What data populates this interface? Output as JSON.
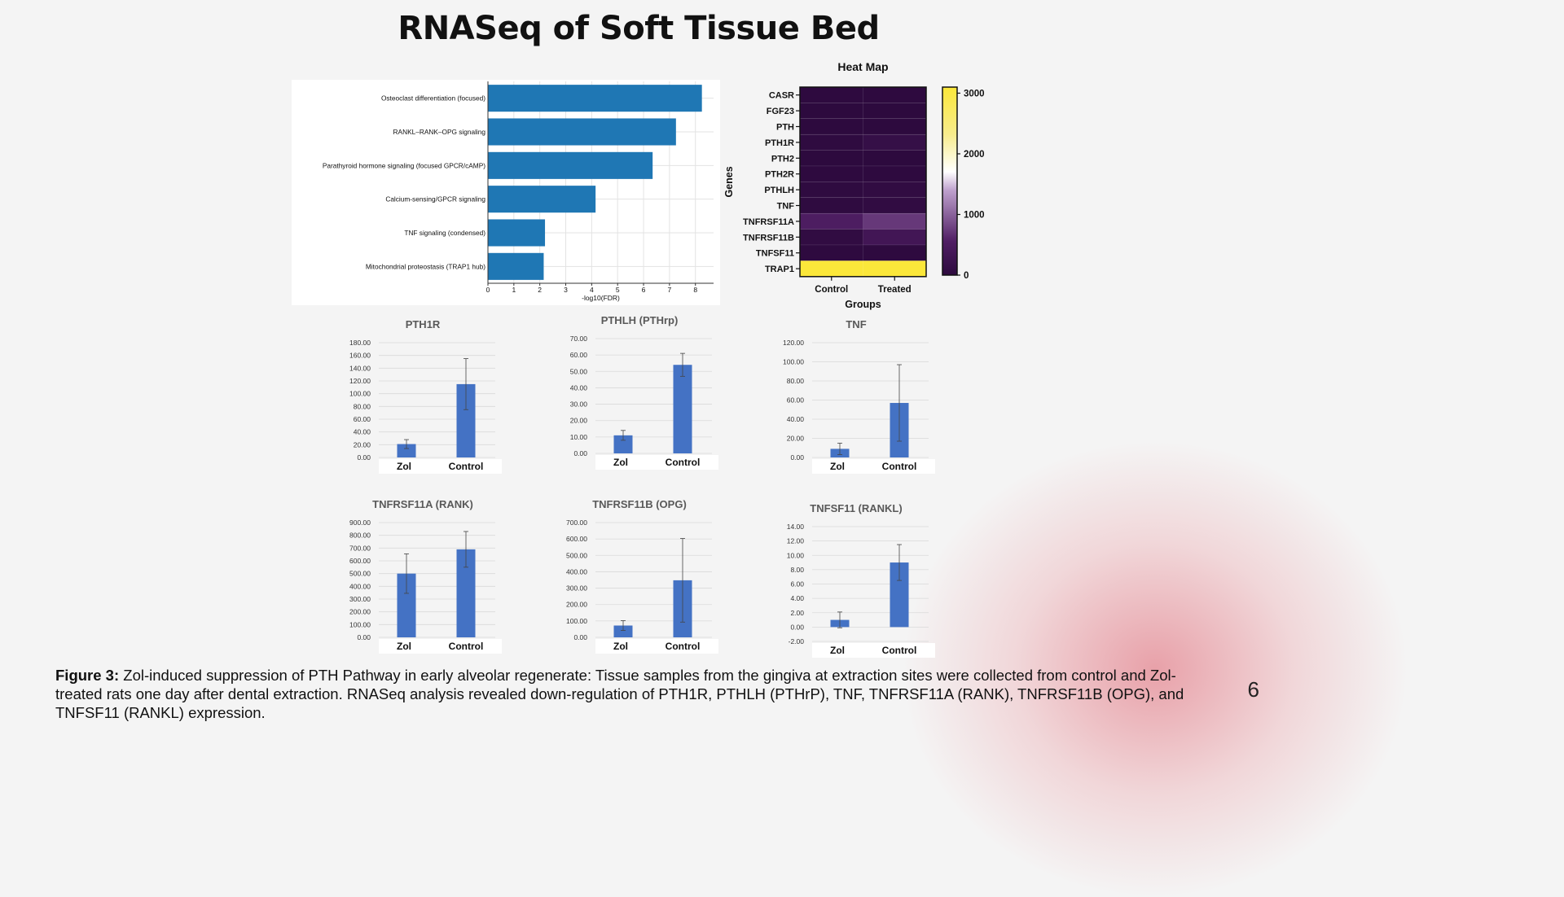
{
  "slide": {
    "title": "RNASeq of Soft Tissue Bed",
    "caption_label": "Figure 3:",
    "caption_text": " Zol-induced suppression of PTH Pathway in early alveolar regenerate: Tissue samples from the gingiva at extraction sites were collected from control and Zol-treated rats one day after dental extraction. RNASeq analysis revealed down-regulation of PTH1R, PTHLH (PTHrP), TNF, TNFRSF11A (RANK), TNFRSF11B (OPG), and TNFSF11 (RANKL) expression.",
    "page_number": "6"
  },
  "colors": {
    "pathway_bar": "#1f77b4",
    "gene_bar": "#4472c4",
    "heat_low": "#2d0a3e",
    "heat_high": "#fbe73a"
  },
  "chart_data": [
    {
      "id": "pathway",
      "type": "bar",
      "orientation": "horizontal",
      "categories": [
        "Osteoclast differentiation (focused)",
        "RANKL–RANK–OPG signaling",
        "Parathyroid hormone signaling (focused GPCR/cAMP)",
        "Calcium-sensing/GPCR signaling",
        "TNF signaling (condensed)",
        "Mitochondrial proteostasis (TRAP1 hub)"
      ],
      "values": [
        8.25,
        7.25,
        6.35,
        4.15,
        2.2,
        2.15
      ],
      "xlabel": "-log10(FDR)",
      "xlim": [
        0,
        8.7
      ],
      "xticks": [
        "0",
        "1",
        "2",
        "3",
        "4",
        "5",
        "6",
        "7",
        "8"
      ],
      "grid": true
    },
    {
      "id": "heatmap",
      "type": "heatmap",
      "title": "Heat Map",
      "xlabel": "Groups",
      "ylabel": "Genes",
      "columns": [
        "Control",
        "Treated"
      ],
      "rows": [
        "CASR",
        "FGF23",
        "PTH",
        "PTH1R",
        "PTH2",
        "PTH2R",
        "PTHLH",
        "TNF",
        "TNFRSF11A",
        "TNFRSF11B",
        "TNFSF11",
        "TRAP1"
      ],
      "values": [
        [
          10,
          10
        ],
        [
          5,
          5
        ],
        [
          5,
          5
        ],
        [
          25,
          130
        ],
        [
          5,
          5
        ],
        [
          10,
          10
        ],
        [
          30,
          60
        ],
        [
          25,
          60
        ],
        [
          500,
          700
        ],
        [
          60,
          330
        ],
        [
          10,
          10
        ],
        [
          3100,
          3050
        ]
      ],
      "colorbar_ticks": [
        "0",
        "1000",
        "2000",
        "3000"
      ],
      "colorbar_range": [
        0,
        3000
      ]
    },
    {
      "id": "pth1r",
      "type": "bar",
      "title": "PTH1R",
      "categories": [
        "Zol",
        "Control"
      ],
      "values": [
        21,
        115
      ],
      "errors": [
        7,
        40
      ],
      "ylim": [
        0,
        180
      ],
      "yticks": [
        "0.00",
        "20.00",
        "40.00",
        "60.00",
        "80.00",
        "100.00",
        "120.00",
        "140.00",
        "160.00",
        "180.00"
      ]
    },
    {
      "id": "pthlh",
      "type": "bar",
      "title": "PTHLH (PTHrp)",
      "categories": [
        "Zol",
        "Control"
      ],
      "values": [
        11,
        54
      ],
      "errors": [
        3,
        7
      ],
      "ylim": [
        0,
        70
      ],
      "yticks": [
        "0.00",
        "10.00",
        "20.00",
        "30.00",
        "40.00",
        "50.00",
        "60.00",
        "70.00"
      ]
    },
    {
      "id": "tnf",
      "type": "bar",
      "title": "TNF",
      "categories": [
        "Zol",
        "Control"
      ],
      "values": [
        9,
        57
      ],
      "errors": [
        6,
        40
      ],
      "ylim": [
        0,
        120
      ],
      "yticks": [
        "0.00",
        "20.00",
        "40.00",
        "60.00",
        "80.00",
        "100.00",
        "120.00"
      ]
    },
    {
      "id": "rank",
      "type": "bar",
      "title": "TNFRSF11A (RANK)",
      "categories": [
        "Zol",
        "Control"
      ],
      "values": [
        500,
        690
      ],
      "errors": [
        155,
        140
      ],
      "ylim": [
        0,
        900
      ],
      "yticks": [
        "0.00",
        "100.00",
        "200.00",
        "300.00",
        "400.00",
        "500.00",
        "600.00",
        "700.00",
        "800.00",
        "900.00"
      ]
    },
    {
      "id": "opg",
      "type": "bar",
      "title": "TNFRSF11B (OPG)",
      "categories": [
        "Zol",
        "Control"
      ],
      "values": [
        72,
        348
      ],
      "errors": [
        30,
        255
      ],
      "ylim": [
        0,
        700
      ],
      "yticks": [
        "0.00",
        "100.00",
        "200.00",
        "300.00",
        "400.00",
        "500.00",
        "600.00",
        "700.00"
      ]
    },
    {
      "id": "rankl",
      "type": "bar",
      "title": "TNFSF11 (RANKL)",
      "categories": [
        "Zol",
        "Control"
      ],
      "values": [
        1.0,
        9.0
      ],
      "errors": [
        1.1,
        2.5
      ],
      "ylim": [
        -2,
        14
      ],
      "yticks": [
        "-2.00",
        "0.00",
        "2.00",
        "4.00",
        "6.00",
        "8.00",
        "10.00",
        "12.00",
        "14.00"
      ]
    }
  ]
}
